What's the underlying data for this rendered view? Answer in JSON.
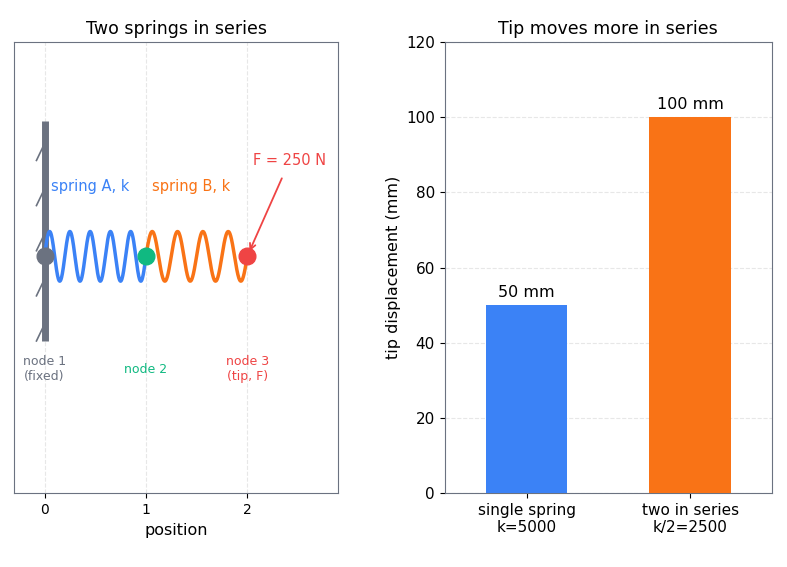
{
  "chart_data": [
    {
      "type": "diagram",
      "title": "Two springs in series",
      "xlabel": "position",
      "xlim": [
        -0.3,
        2.9
      ],
      "xticks": [
        0,
        1,
        2
      ],
      "grid": true,
      "tick_labels": "x",
      "nodes": [
        {
          "x": 0,
          "label": "node 1\n(fixed)",
          "color": "#6b7280"
        },
        {
          "x": 1,
          "label": "node 2",
          "color": "#10b981"
        },
        {
          "x": 2,
          "label": "node 3\n(tip, F)",
          "color": "#ef4444"
        }
      ],
      "springs": [
        {
          "from": 0,
          "to": 1,
          "label": "spring A, k",
          "color": "#3b82f6"
        },
        {
          "from": 1,
          "to": 2,
          "label": "spring B, k",
          "color": "#f97316"
        }
      ],
      "load": {
        "node": 2,
        "label": "F = 250 N",
        "color": "#ef4444"
      }
    },
    {
      "type": "bar",
      "title": "Tip moves more in series",
      "ylabel": "tip displacement (mm)",
      "categories": [
        "single spring\nk=5000",
        "two in series\nk/2=2500"
      ],
      "values": [
        50,
        100
      ],
      "value_labels": [
        "50 mm",
        "100 mm"
      ],
      "colors": [
        "#3b82f6",
        "#f97316"
      ],
      "ylim": [
        0,
        120
      ],
      "yticks": [
        0,
        20,
        40,
        60,
        80,
        100,
        120
      ],
      "grid": true,
      "data_labels": true
    }
  ]
}
